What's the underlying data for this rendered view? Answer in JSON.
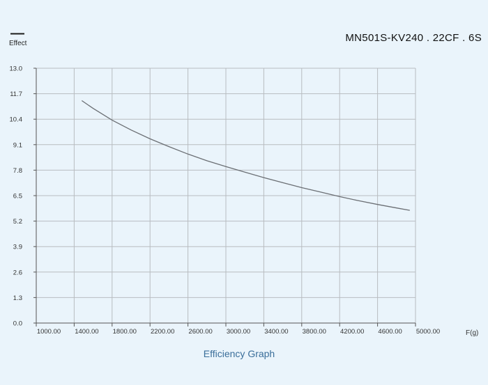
{
  "legend": {
    "label": "Effect",
    "color": "#1a1a1a"
  },
  "chart_data": {
    "type": "line",
    "title": "MN501S-KV240 . 22CF . 6S",
    "subtitle": "Efficiency Graph",
    "xlabel": "F(g)",
    "ylabel": "",
    "xlim": [
      1000,
      5000
    ],
    "ylim": [
      0,
      13
    ],
    "x_ticks": [
      "1000.00",
      "1400.00",
      "1800.00",
      "2200.00",
      "2600.00",
      "3000.00",
      "3400.00",
      "3800.00",
      "4200.00",
      "4600.00",
      "5000.00"
    ],
    "y_ticks": [
      "0.0",
      "1.3",
      "2.6",
      "3.9",
      "5.2",
      "6.5",
      "7.8",
      "9.1",
      "10.4",
      "11.7",
      "13.0"
    ],
    "grid": true,
    "series": [
      {
        "name": "Effect",
        "color": "#6b6f74",
        "x": [
          1480,
          1600,
          1800,
          2000,
          2200,
          2400,
          2600,
          2800,
          3000,
          3200,
          3400,
          3600,
          3800,
          4000,
          4200,
          4400,
          4600,
          4800,
          5000,
          5200
        ],
        "y": [
          11.35,
          10.95,
          10.35,
          9.85,
          9.4,
          9.0,
          8.62,
          8.28,
          7.98,
          7.7,
          7.42,
          7.16,
          6.91,
          6.68,
          6.45,
          6.24,
          6.05,
          5.87,
          5.7,
          5.55
        ]
      }
    ]
  },
  "colors": {
    "background": "#eaf4fb",
    "grid": "#b8bcc0",
    "axis": "#555555",
    "caption": "#3a6e9a"
  }
}
